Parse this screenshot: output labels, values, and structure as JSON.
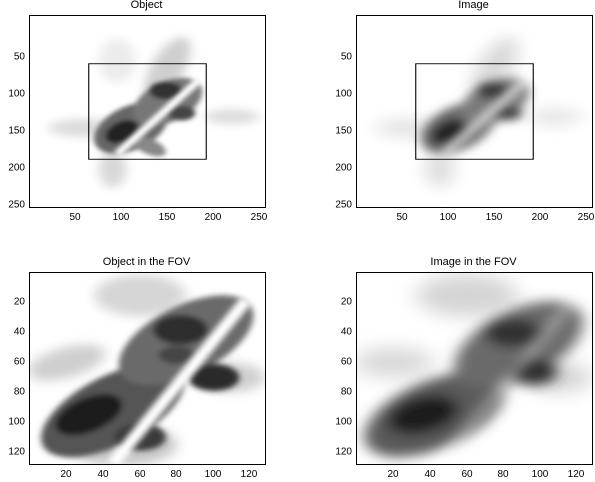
{
  "figure": {
    "panels": [
      {
        "id": "object",
        "title": "Object",
        "xticks": [
          "50",
          "100",
          "150",
          "200",
          "250"
        ],
        "yticks": [
          "50",
          "100",
          "150",
          "200",
          "250"
        ],
        "has_fov_box": true
      },
      {
        "id": "image",
        "title": "Image",
        "xticks": [
          "50",
          "100",
          "150",
          "200",
          "250"
        ],
        "yticks": [
          "50",
          "100",
          "150",
          "200",
          "250"
        ],
        "has_fov_box": true
      },
      {
        "id": "object-fov",
        "title": "Object in the FOV",
        "xticks": [
          "20",
          "40",
          "60",
          "80",
          "100",
          "120"
        ],
        "yticks": [
          "20",
          "40",
          "60",
          "80",
          "100",
          "120"
        ],
        "has_fov_box": false
      },
      {
        "id": "image-fov",
        "title": "Image in the FOV",
        "xticks": [
          "20",
          "40",
          "60",
          "80",
          "100",
          "120"
        ],
        "yticks": [
          "20",
          "40",
          "60",
          "80",
          "100",
          "120"
        ],
        "has_fov_box": false
      }
    ],
    "colormap": "grayscale-inverted"
  }
}
